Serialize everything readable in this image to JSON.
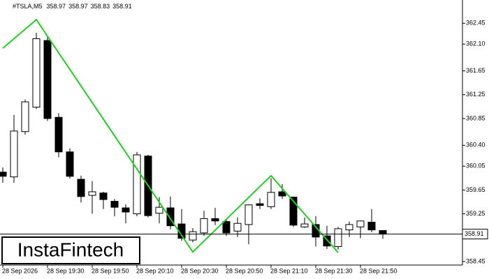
{
  "chart_data": {
    "type": "candlestick",
    "title": "#TSLA,M5",
    "categories": [
      "28 Sep 2026",
      null,
      null,
      null,
      "28 Sep 19:30",
      null,
      null,
      null,
      "28 Sep 19:50",
      null,
      null,
      null,
      "28 Sep 20:10",
      null,
      null,
      null,
      "28 Sep 20:30",
      null,
      null,
      null,
      "28 Sep 20:50",
      null,
      null,
      null,
      "28 Sep 21:10",
      null,
      null,
      null,
      "28 Sep 21:30",
      null,
      null,
      null,
      "28 Sep 21:50",
      null,
      null
    ],
    "open": [
      359.95,
      359.87,
      360.63,
      361.04,
      362.16,
      360.87,
      360.29,
      359.83,
      359.56,
      359.6,
      359.46,
      359.35,
      359.25,
      360.22,
      359.26,
      359.35,
      359.08,
      358.81,
      358.93,
      359.17,
      359.12,
      358.96,
      359.07,
      359.42,
      359.37,
      359.62,
      359.53,
      359.03,
      359.07,
      358.88,
      358.7,
      358.98,
      359.03,
      359.11,
      358.97
    ],
    "high": [
      360.03,
      360.91,
      361.17,
      362.29,
      362.23,
      360.94,
      360.35,
      359.89,
      359.8,
      359.62,
      359.5,
      359.41,
      360.29,
      360.24,
      359.53,
      359.54,
      359.33,
      359.01,
      359.3,
      359.35,
      359.15,
      359.19,
      359.41,
      359.51,
      359.85,
      359.75,
      359.54,
      359.19,
      359.21,
      359.05,
      359.03,
      359.12,
      359.13,
      359.33,
      358.97
    ],
    "low": [
      359.77,
      359.77,
      360.58,
      361.01,
      360.81,
      360.2,
      359.84,
      359.44,
      359.25,
      359.33,
      359.21,
      359.09,
      359.21,
      359.19,
      359.09,
      358.99,
      358.8,
      358.77,
      358.88,
      359.06,
      358.88,
      358.86,
      358.74,
      359.33,
      359.33,
      359.5,
      359.03,
      359.01,
      358.7,
      358.66,
      358.65,
      358.86,
      358.84,
      358.94,
      358.83
    ],
    "close": [
      359.88,
      360.64,
      361.13,
      362.19,
      360.85,
      360.29,
      359.88,
      359.54,
      359.62,
      359.49,
      359.36,
      359.28,
      360.24,
      359.22,
      359.36,
      359.05,
      358.84,
      358.95,
      359.17,
      359.13,
      358.93,
      359.09,
      359.4,
      359.39,
      359.61,
      359.55,
      359.06,
      359.08,
      358.86,
      358.71,
      359.0,
      359.07,
      359.13,
      358.98,
      358.91
    ],
    "up_color": "#ffffff",
    "down_color": "#000000",
    "ylim": [
      358.39,
      362.84
    ],
    "yticks": [
      362.45,
      {
        "value": 362.1,
        "label": "362.10"
      },
      361.65,
      361.25,
      360.85,
      {
        "value": 360.4,
        "label": "360.40"
      },
      360.05,
      359.65,
      359.25,
      358.85,
      358.45
    ],
    "last_price": 358.91,
    "pattern": {
      "color": "#22cc22",
      "x": [
        0,
        3,
        17,
        24,
        30
      ],
      "values": [
        362.03,
        362.51,
        358.61,
        359.89,
        358.6
      ]
    },
    "watermark": "InstaFintech"
  }
}
